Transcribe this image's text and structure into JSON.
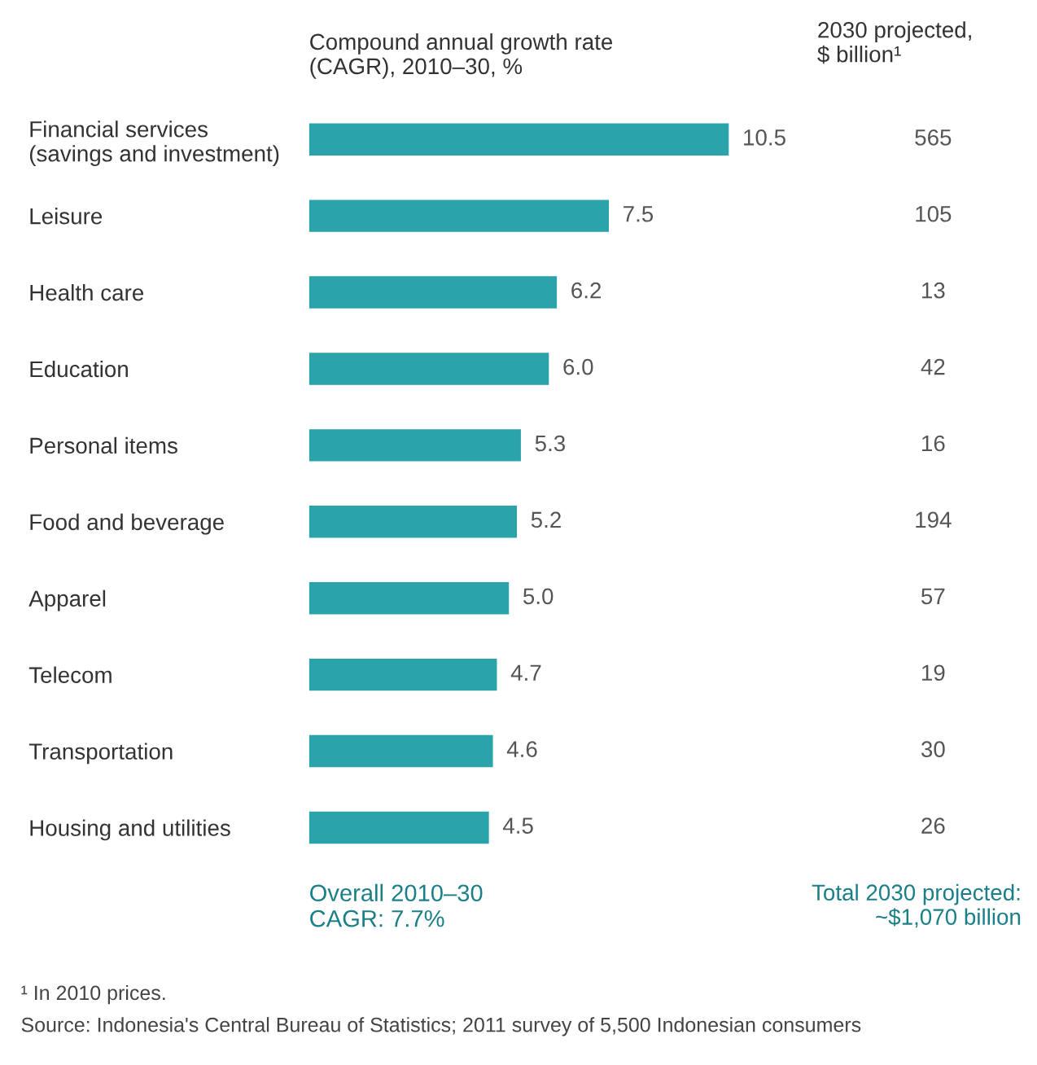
{
  "chart_data": {
    "type": "bar",
    "orientation": "horizontal",
    "xlabel": "Compound annual growth rate\n(CAGR), 2010–30, %",
    "categories": [
      "Financial services\n(savings and investment)",
      "Leisure",
      "Health care",
      "Education",
      "Personal items",
      "Food and beverage",
      "Apparel",
      "Telecom",
      "Transportation",
      "Housing and utilities"
    ],
    "values": [
      10.5,
      7.5,
      6.2,
      6.0,
      5.3,
      5.2,
      5.0,
      4.7,
      4.6,
      4.5
    ],
    "color": "#2aa3ab",
    "data_labels": true,
    "value_labels": [
      "10.5",
      "7.5",
      "6.2",
      "6.0",
      "5.3",
      "5.2",
      "5.0",
      "4.7",
      "4.6",
      "4.5"
    ],
    "grid": false,
    "annotations": [
      "2030 projected,\n$ billion¹",
      "565",
      "105",
      "13",
      "42",
      "16",
      "194",
      "57",
      "19",
      "30",
      "26",
      "Overall 2010–30\nCAGR: 7.7%",
      "Total 2030 projected:\n~$1,070 billion",
      "¹ In 2010 prices.",
      "Source: Indonesia's Central Bureau of Statistics; 2011 survey of 5,500 Indonesian consumers"
    ]
  }
}
